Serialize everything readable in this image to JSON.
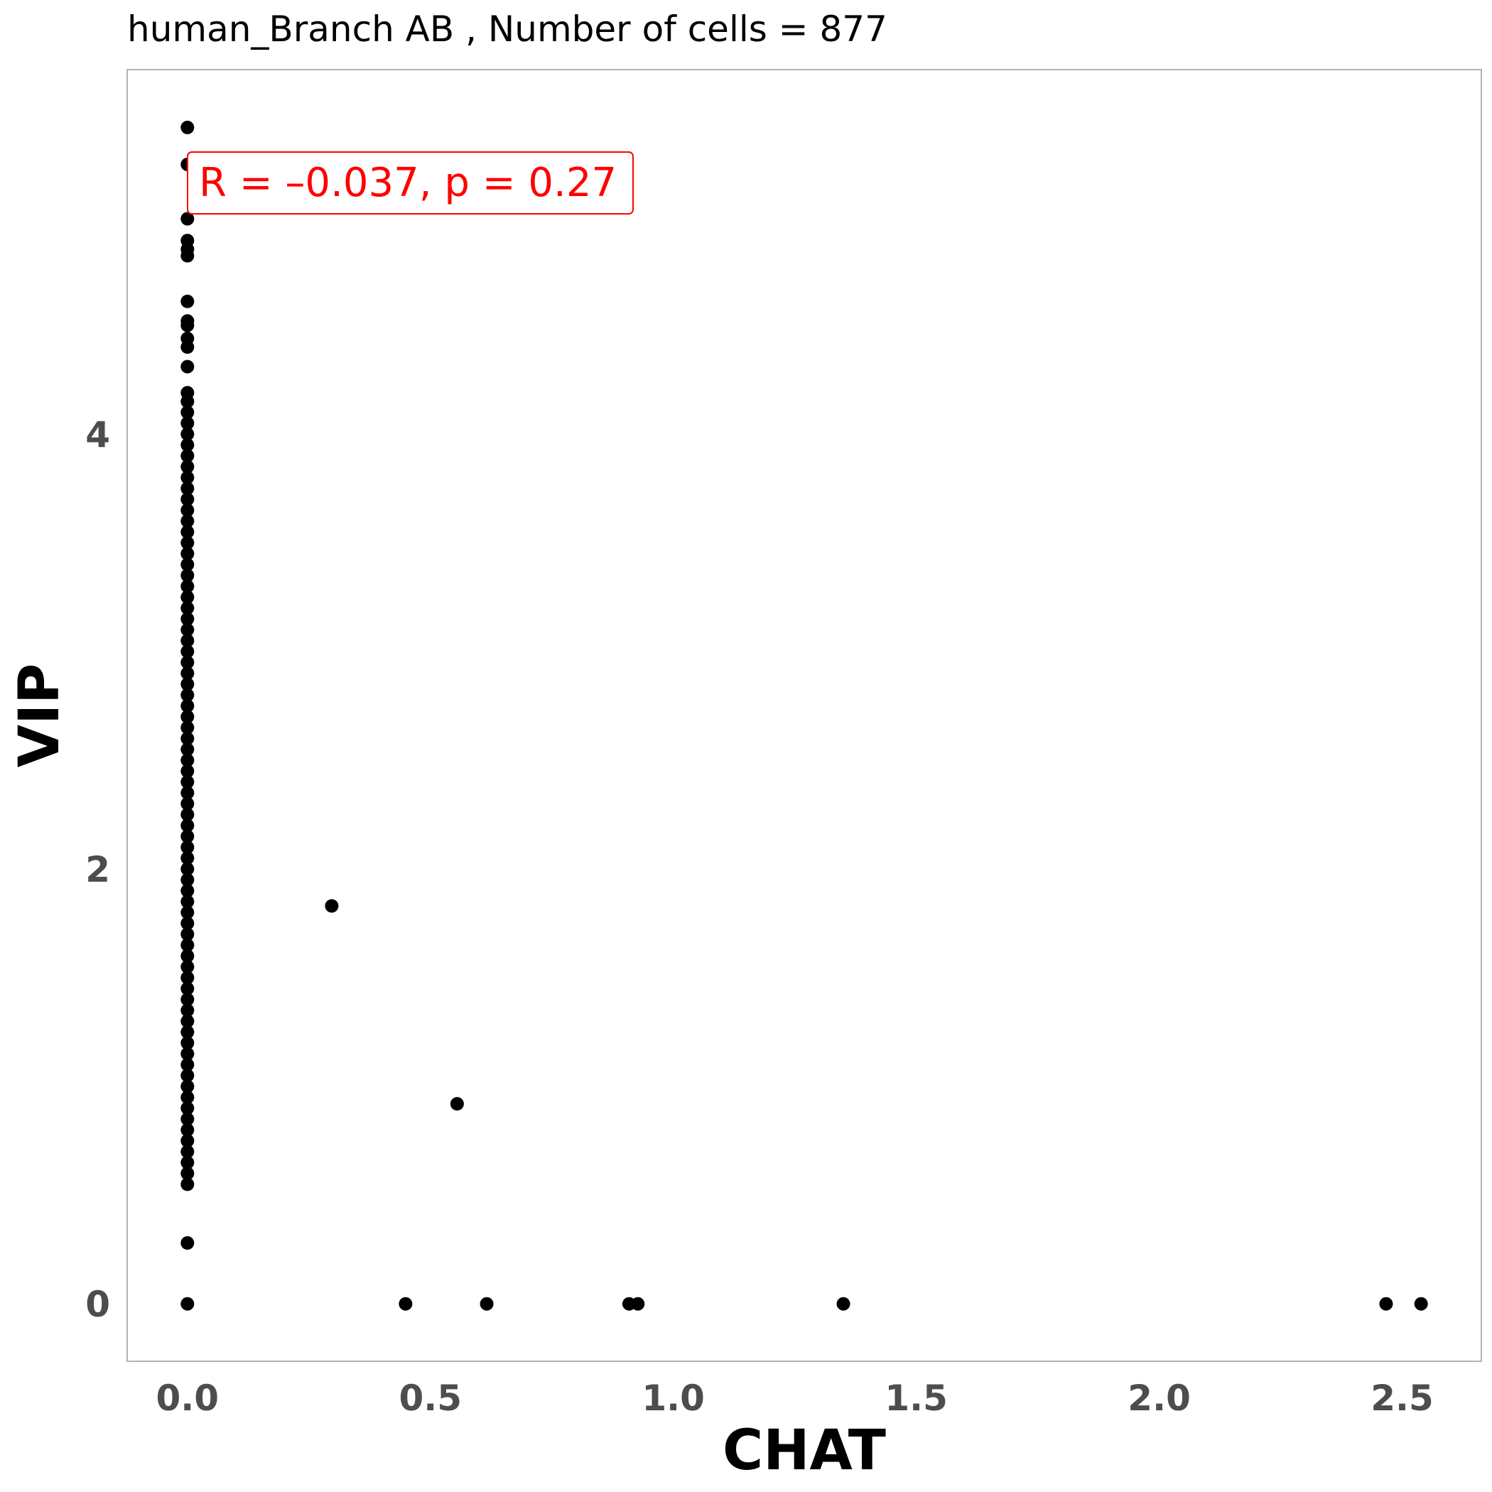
{
  "chart_data": {
    "type": "scatter",
    "title": "human_Branch AB , Number of cells =  877",
    "x_label": "CHAT",
    "y_label": "VIP",
    "annotation": "R = –0.037, p = 0.27",
    "annotation_color": "#ff0000",
    "color": "#000000",
    "grid": false,
    "xlim": [
      -0.124,
      2.663
    ],
    "ylim": [
      -0.264,
      5.676
    ],
    "xticks": [
      {
        "value": 0,
        "label": "0.0"
      },
      0.5,
      {
        "value": 1,
        "label": "1.0"
      },
      1.5,
      {
        "value": 2,
        "label": "2.0"
      },
      2.5
    ],
    "yticks": [
      0,
      2,
      4
    ],
    "x": [
      0,
      0,
      0,
      0,
      0,
      0,
      0,
      0,
      0,
      0,
      0,
      0,
      0,
      0,
      0,
      0,
      0,
      0,
      0,
      0,
      0,
      0,
      0,
      0,
      0,
      0,
      0,
      0,
      0,
      0,
      0,
      0,
      0,
      0,
      0,
      0,
      0,
      0,
      0,
      0,
      0,
      0,
      0,
      0,
      0,
      0,
      0,
      0,
      0,
      0,
      0,
      0,
      0,
      0,
      0,
      0,
      0,
      0,
      0,
      0,
      0,
      0,
      0,
      0,
      0,
      0,
      0,
      0,
      0,
      0,
      0,
      0,
      0,
      0,
      0,
      0,
      0,
      0,
      0,
      0,
      0,
      0,
      0,
      0,
      0,
      0,
      0,
      0,
      0.297,
      0.555,
      0.449,
      0.616,
      0.909,
      0.927,
      1.35,
      2.467,
      2.539
    ],
    "y": [
      5.41,
      5.24,
      4.99,
      4.89,
      4.85,
      4.82,
      4.61,
      4.52,
      4.5,
      4.44,
      4.4,
      4.31,
      4.19,
      4.15,
      4.1,
      4.05,
      4,
      3.95,
      3.9,
      3.85,
      3.8,
      3.75,
      3.7,
      3.65,
      3.6,
      3.55,
      3.5,
      3.45,
      3.4,
      3.35,
      3.3,
      3.25,
      3.2,
      3.15,
      3.1,
      3.05,
      3,
      2.95,
      2.9,
      2.85,
      2.8,
      2.75,
      2.7,
      2.65,
      2.6,
      2.55,
      2.5,
      2.45,
      2.4,
      2.35,
      2.3,
      2.25,
      2.2,
      2.15,
      2.1,
      2.05,
      2,
      1.95,
      1.9,
      1.85,
      1.8,
      1.75,
      1.7,
      1.65,
      1.6,
      1.55,
      1.5,
      1.45,
      1.4,
      1.35,
      1.3,
      1.25,
      1.2,
      1.15,
      1.1,
      1.05,
      1,
      0.95,
      0.9,
      0.85,
      0.8,
      0.75,
      0.7,
      0.65,
      0.6,
      0.55,
      0.28,
      0,
      1.83,
      0.92,
      0,
      0,
      0,
      0,
      0,
      0,
      0
    ]
  }
}
